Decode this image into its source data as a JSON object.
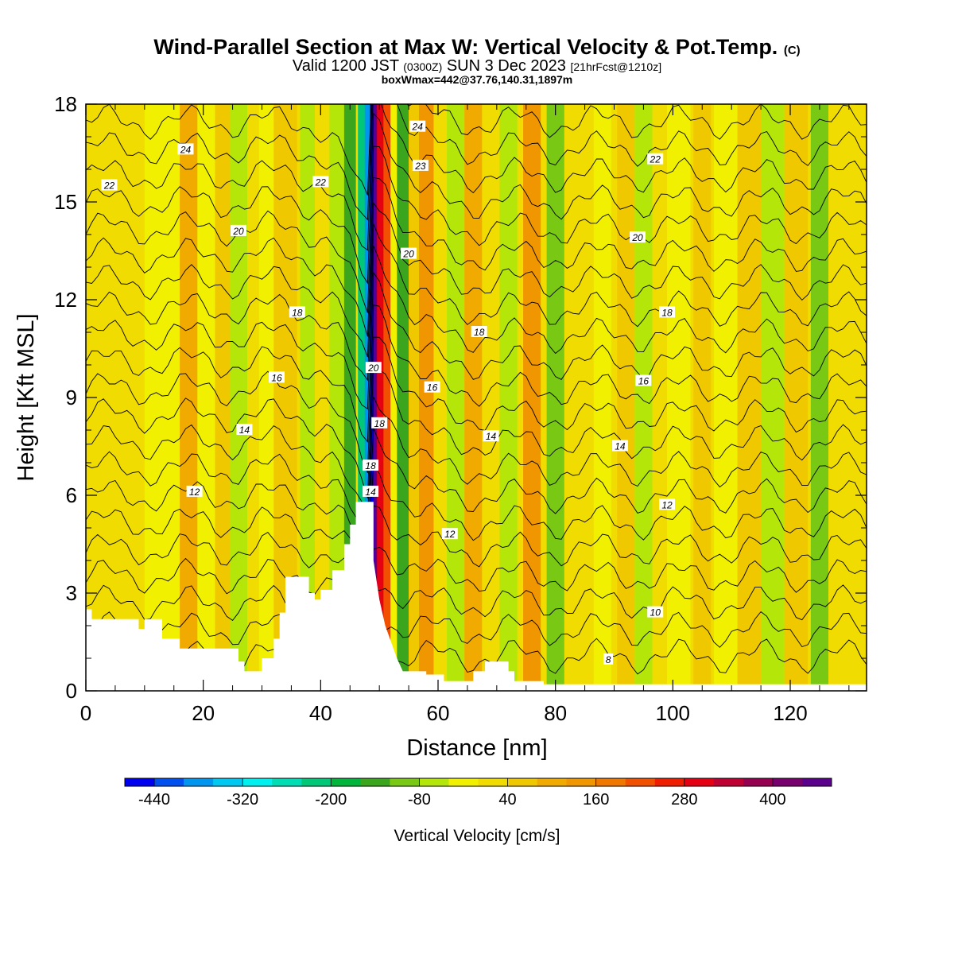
{
  "title": {
    "main": "Wind-Parallel Section at Max W: Vertical Velocity & Pot.Temp.",
    "copyright": "(C)",
    "valid_prefix": "Valid 1200 JST",
    "utc": "(0300Z)",
    "valid_date": "SUN 3 Dec 2023",
    "forecast": "[21hrFcst@1210z]",
    "box": "boxWmax=442@37.76,140.31,1897m"
  },
  "chart_data": {
    "type": "heatmap",
    "xlabel": "Distance [nm]",
    "ylabel": "Height [Kft MSL]",
    "xlim": [
      0,
      133
    ],
    "ylim": [
      0,
      18
    ],
    "x_ticks": [
      0,
      20,
      40,
      60,
      80,
      100,
      120
    ],
    "y_ticks": [
      0,
      3,
      6,
      9,
      12,
      15,
      18
    ],
    "colorbar": {
      "label": "Vertical Velocity [cm/s]",
      "min": -480,
      "max": 480,
      "step": 40,
      "tick_labels": [
        "-440",
        "-320",
        "-200",
        "-80",
        "40",
        "160",
        "280",
        "400"
      ],
      "colors": [
        "#0000f0",
        "#0050f0",
        "#0096f0",
        "#00c8f0",
        "#00f0f0",
        "#00dcb4",
        "#00c878",
        "#00b43c",
        "#3ca51e",
        "#78c814",
        "#b4e60a",
        "#f0f000",
        "#f0dc00",
        "#f0c800",
        "#f0aa00",
        "#f09600",
        "#f07800",
        "#f05000",
        "#f01e00",
        "#e60014",
        "#be0032",
        "#960050",
        "#78006e",
        "#5a008c"
      ]
    },
    "terrain": [
      [
        0,
        2.5
      ],
      [
        1,
        2.5
      ],
      [
        1,
        2.2
      ],
      [
        9,
        2.2
      ],
      [
        9,
        1.9
      ],
      [
        10,
        1.9
      ],
      [
        10,
        2.2
      ],
      [
        13,
        2.2
      ],
      [
        13,
        1.6
      ],
      [
        16,
        1.6
      ],
      [
        16,
        1.3
      ],
      [
        26,
        1.3
      ],
      [
        26,
        0.9
      ],
      [
        27,
        0.9
      ],
      [
        27,
        0.6
      ],
      [
        30,
        0.6
      ],
      [
        30,
        1.0
      ],
      [
        32,
        1.0
      ],
      [
        32,
        1.6
      ],
      [
        33,
        1.6
      ],
      [
        33,
        2.4
      ],
      [
        34,
        2.4
      ],
      [
        34,
        3.5
      ],
      [
        38,
        3.5
      ],
      [
        38,
        3.0
      ],
      [
        39,
        3.0
      ],
      [
        39,
        2.8
      ],
      [
        40,
        2.8
      ],
      [
        40,
        3.1
      ],
      [
        42,
        3.1
      ],
      [
        42,
        3.7
      ],
      [
        44,
        3.7
      ],
      [
        44,
        4.5
      ],
      [
        45,
        4.5
      ],
      [
        45,
        5.1
      ],
      [
        46,
        5.1
      ],
      [
        46,
        5.8
      ],
      [
        49,
        5.8
      ],
      [
        49,
        4.0
      ],
      [
        50,
        2.8
      ],
      [
        51,
        2.0
      ],
      [
        52,
        1.5
      ],
      [
        53,
        1.0
      ],
      [
        54,
        0.6
      ],
      [
        58,
        0.6
      ],
      [
        58,
        0.5
      ],
      [
        61,
        0.5
      ],
      [
        61,
        0.3
      ],
      [
        66,
        0.3
      ],
      [
        66,
        0.6
      ],
      [
        68,
        0.6
      ],
      [
        68,
        0.9
      ],
      [
        72,
        0.9
      ],
      [
        72,
        0.6
      ],
      [
        73,
        0.6
      ],
      [
        73,
        0.3
      ],
      [
        78,
        0.3
      ],
      [
        78,
        0.2
      ],
      [
        133,
        0.2
      ]
    ],
    "vertical_velocity_columns": [
      {
        "x": 2,
        "w": 12,
        "value": 30
      },
      {
        "x": 6,
        "w": 8,
        "value": 15
      },
      {
        "x": 10,
        "w": 9,
        "value": 35
      },
      {
        "x": 14,
        "w": 8,
        "value": -30
      },
      {
        "x": 18,
        "w": 4,
        "value": 90
      },
      {
        "x": 21,
        "w": 4,
        "value": -40
      },
      {
        "x": 24,
        "w": 4,
        "value": 40
      },
      {
        "x": 26,
        "w": 3,
        "value": -60
      },
      {
        "x": 29,
        "w": 3,
        "value": 20
      },
      {
        "x": 31,
        "w": 3,
        "value": -30
      },
      {
        "x": 34,
        "w": 4,
        "value": 45
      },
      {
        "x": 38,
        "w": 3,
        "value": -60
      },
      {
        "x": 40.5,
        "w": 3,
        "value": 20
      },
      {
        "x": 43,
        "w": 3,
        "value": -70
      },
      {
        "x": 45,
        "w": 2,
        "value": -130
      },
      {
        "x": 47,
        "w": 1.3,
        "value": -230
      },
      {
        "x": 48,
        "w": 1.0,
        "value": -380
      },
      {
        "x": 48.8,
        "w": 0.8,
        "value": -460
      },
      {
        "x": 49.4,
        "w": 0.7,
        "value": 440
      },
      {
        "x": 50.2,
        "w": 1.2,
        "value": 300
      },
      {
        "x": 51.3,
        "w": 1.2,
        "value": 200
      },
      {
        "x": 52.5,
        "w": 1.2,
        "value": -40
      },
      {
        "x": 54,
        "w": 2.0,
        "value": -150
      },
      {
        "x": 56,
        "w": 2.0,
        "value": 60
      },
      {
        "x": 58,
        "w": 2.5,
        "value": 140
      },
      {
        "x": 60.5,
        "w": 2.5,
        "value": 30
      },
      {
        "x": 63,
        "w": 3,
        "value": -60
      },
      {
        "x": 66,
        "w": 3,
        "value": 80
      },
      {
        "x": 69,
        "w": 3,
        "value": 20
      },
      {
        "x": 72,
        "w": 3,
        "value": -80
      },
      {
        "x": 76,
        "w": 3,
        "value": 130
      },
      {
        "x": 80,
        "w": 3,
        "value": -100
      },
      {
        "x": 84,
        "w": 4,
        "value": 30
      },
      {
        "x": 88,
        "w": 3,
        "value": -40
      },
      {
        "x": 92,
        "w": 3,
        "value": 60
      },
      {
        "x": 95,
        "w": 3,
        "value": -80
      },
      {
        "x": 98,
        "w": 3,
        "value": 20
      },
      {
        "x": 101,
        "w": 4,
        "value": -40
      },
      {
        "x": 105,
        "w": 3,
        "value": 60
      },
      {
        "x": 109,
        "w": 4,
        "value": -30
      },
      {
        "x": 113,
        "w": 4,
        "value": 40
      },
      {
        "x": 117,
        "w": 4,
        "value": -50
      },
      {
        "x": 121,
        "w": 4,
        "value": 70
      },
      {
        "x": 125,
        "w": 3,
        "value": -110
      },
      {
        "x": 129,
        "w": 4,
        "value": 20
      }
    ],
    "theta_contour_labels": [
      {
        "text": "24",
        "x": 17,
        "y": 16.6
      },
      {
        "text": "22",
        "x": 4,
        "y": 15.5
      },
      {
        "text": "22",
        "x": 40,
        "y": 15.6
      },
      {
        "text": "20",
        "x": 26,
        "y": 14.1
      },
      {
        "text": "24",
        "x": 56.5,
        "y": 17.3
      },
      {
        "text": "23",
        "x": 57,
        "y": 16.1
      },
      {
        "text": "22",
        "x": 97,
        "y": 16.3
      },
      {
        "text": "20",
        "x": 55,
        "y": 13.4
      },
      {
        "text": "20",
        "x": 94,
        "y": 13.9
      },
      {
        "text": "18",
        "x": 36,
        "y": 11.6
      },
      {
        "text": "18",
        "x": 67,
        "y": 11.0
      },
      {
        "text": "18",
        "x": 99,
        "y": 11.6
      },
      {
        "text": "20",
        "x": 49,
        "y": 9.9
      },
      {
        "text": "16",
        "x": 32.5,
        "y": 9.6
      },
      {
        "text": "16",
        "x": 59,
        "y": 9.3
      },
      {
        "text": "16",
        "x": 95,
        "y": 9.5
      },
      {
        "text": "18",
        "x": 50,
        "y": 8.2
      },
      {
        "text": "14",
        "x": 27,
        "y": 8.0
      },
      {
        "text": "14",
        "x": 69,
        "y": 7.8
      },
      {
        "text": "14",
        "x": 91,
        "y": 7.5
      },
      {
        "text": "18",
        "x": 48.5,
        "y": 6.9
      },
      {
        "text": "14",
        "x": 48.5,
        "y": 6.1
      },
      {
        "text": "12",
        "x": 18.5,
        "y": 6.1
      },
      {
        "text": "12",
        "x": 99,
        "y": 5.7
      },
      {
        "text": "12",
        "x": 62,
        "y": 4.8
      },
      {
        "text": "10",
        "x": 97,
        "y": 2.4
      },
      {
        "text": "8",
        "x": 89,
        "y": 0.95
      }
    ]
  }
}
